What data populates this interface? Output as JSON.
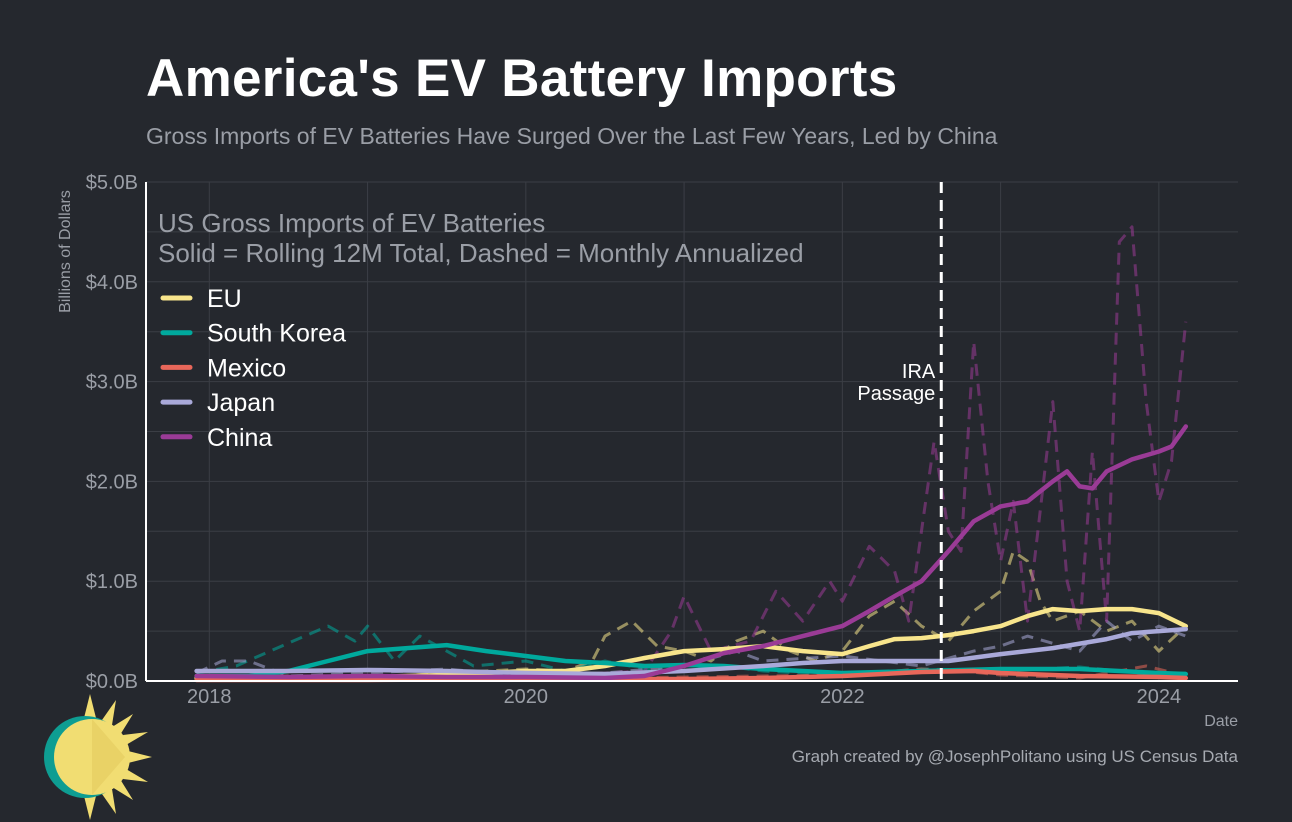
{
  "header": {
    "title": "America's EV Battery Imports",
    "subtitle": "Gross Imports of EV Batteries Have Surged Over the Last Few Years, Led by China"
  },
  "footer": {
    "credit": "Graph created by @JosephPolitano using US Census Data"
  },
  "logo": {
    "icon": "sun-logo-icon"
  },
  "colors": {
    "background": "#25282e",
    "grid": "#3b3e45",
    "axis": "#ffffff",
    "EU": "#f8e58c",
    "South Korea": "#00a99d",
    "Mexico": "#e8675a",
    "Japan": "#a9a9d9",
    "China": "#9a3b96"
  },
  "chart_data": {
    "type": "line",
    "inner_title_lines": [
      "US Gross Imports of EV Batteries",
      "Solid = Rolling 12M Total, Dashed = Monthly Annualized"
    ],
    "xlabel": "Date",
    "ylabel": "Billions of Dollars",
    "xlim": [
      2017.6,
      2024.5
    ],
    "ylim": [
      0,
      5
    ],
    "x_ticks": [
      2018,
      2020,
      2022,
      2024
    ],
    "x_tick_labels": [
      "2018",
      "2020",
      "2022",
      "2024"
    ],
    "y_ticks": [
      0,
      1,
      2,
      3,
      4,
      5
    ],
    "y_tick_labels": [
      "$0.0B",
      "$1.0B",
      "$2.0B",
      "$3.0B",
      "$4.0B",
      "$5.0B"
    ],
    "legend_position": "top-left",
    "annotation": {
      "x": 2022.625,
      "lines": [
        "IRA",
        "Passage"
      ]
    },
    "series": [
      {
        "name": "EU",
        "rolling": [
          [
            2017.92,
            0.03
          ],
          [
            2018.5,
            0.03
          ],
          [
            2019.0,
            0.04
          ],
          [
            2019.5,
            0.06
          ],
          [
            2020.0,
            0.1
          ],
          [
            2020.25,
            0.1
          ],
          [
            2020.5,
            0.15
          ],
          [
            2020.75,
            0.23
          ],
          [
            2021.0,
            0.3
          ],
          [
            2021.25,
            0.32
          ],
          [
            2021.5,
            0.35
          ],
          [
            2021.75,
            0.3
          ],
          [
            2022.0,
            0.27
          ],
          [
            2022.17,
            0.35
          ],
          [
            2022.33,
            0.42
          ],
          [
            2022.5,
            0.43
          ],
          [
            2022.67,
            0.46
          ],
          [
            2022.83,
            0.5
          ],
          [
            2023.0,
            0.55
          ],
          [
            2023.17,
            0.65
          ],
          [
            2023.33,
            0.72
          ],
          [
            2023.5,
            0.7
          ],
          [
            2023.67,
            0.72
          ],
          [
            2023.83,
            0.72
          ],
          [
            2024.0,
            0.68
          ],
          [
            2024.17,
            0.55
          ]
        ],
        "monthly": [
          [
            2017.92,
            0.02
          ],
          [
            2018.5,
            0.05
          ],
          [
            2019.0,
            0.03
          ],
          [
            2019.5,
            0.08
          ],
          [
            2020.0,
            0.12
          ],
          [
            2020.25,
            0.1
          ],
          [
            2020.42,
            0.2
          ],
          [
            2020.5,
            0.45
          ],
          [
            2020.67,
            0.6
          ],
          [
            2020.83,
            0.35
          ],
          [
            2021.0,
            0.3
          ],
          [
            2021.17,
            0.2
          ],
          [
            2021.33,
            0.4
          ],
          [
            2021.5,
            0.5
          ],
          [
            2021.67,
            0.3
          ],
          [
            2021.83,
            0.2
          ],
          [
            2022.0,
            0.3
          ],
          [
            2022.17,
            0.65
          ],
          [
            2022.33,
            0.8
          ],
          [
            2022.5,
            0.55
          ],
          [
            2022.67,
            0.4
          ],
          [
            2022.83,
            0.7
          ],
          [
            2023.0,
            0.9
          ],
          [
            2023.08,
            1.3
          ],
          [
            2023.17,
            1.2
          ],
          [
            2023.25,
            0.8
          ],
          [
            2023.33,
            0.6
          ],
          [
            2023.5,
            0.7
          ],
          [
            2023.67,
            0.5
          ],
          [
            2023.83,
            0.6
          ],
          [
            2024.0,
            0.3
          ],
          [
            2024.17,
            0.55
          ]
        ]
      },
      {
        "name": "South Korea",
        "rolling": [
          [
            2017.92,
            0.05
          ],
          [
            2018.25,
            0.05
          ],
          [
            2018.5,
            0.1
          ],
          [
            2018.75,
            0.2
          ],
          [
            2019.0,
            0.3
          ],
          [
            2019.25,
            0.33
          ],
          [
            2019.5,
            0.36
          ],
          [
            2019.75,
            0.3
          ],
          [
            2020.0,
            0.25
          ],
          [
            2020.25,
            0.2
          ],
          [
            2020.5,
            0.18
          ],
          [
            2020.75,
            0.15
          ],
          [
            2021.0,
            0.16
          ],
          [
            2021.25,
            0.15
          ],
          [
            2021.5,
            0.12
          ],
          [
            2021.75,
            0.1
          ],
          [
            2022.0,
            0.08
          ],
          [
            2022.5,
            0.1
          ],
          [
            2023.0,
            0.12
          ],
          [
            2023.5,
            0.12
          ],
          [
            2024.0,
            0.08
          ],
          [
            2024.17,
            0.07
          ]
        ],
        "monthly": [
          [
            2017.92,
            0.08
          ],
          [
            2018.17,
            0.15
          ],
          [
            2018.5,
            0.38
          ],
          [
            2018.75,
            0.55
          ],
          [
            2018.92,
            0.4
          ],
          [
            2019.0,
            0.55
          ],
          [
            2019.17,
            0.2
          ],
          [
            2019.33,
            0.45
          ],
          [
            2019.5,
            0.3
          ],
          [
            2019.67,
            0.15
          ],
          [
            2020.0,
            0.2
          ],
          [
            2020.25,
            0.1
          ],
          [
            2020.5,
            0.2
          ],
          [
            2020.75,
            0.12
          ],
          [
            2021.0,
            0.1
          ],
          [
            2021.25,
            0.15
          ],
          [
            2021.5,
            0.1
          ],
          [
            2022.0,
            0.06
          ],
          [
            2022.5,
            0.12
          ],
          [
            2023.0,
            0.1
          ],
          [
            2023.5,
            0.14
          ],
          [
            2024.0,
            0.06
          ],
          [
            2024.17,
            0.08
          ]
        ]
      },
      {
        "name": "Mexico",
        "rolling": [
          [
            2017.92,
            0.01
          ],
          [
            2019.0,
            0.01
          ],
          [
            2020.0,
            0.02
          ],
          [
            2021.0,
            0.02
          ],
          [
            2021.5,
            0.03
          ],
          [
            2022.0,
            0.05
          ],
          [
            2022.5,
            0.09
          ],
          [
            2022.83,
            0.1
          ],
          [
            2023.0,
            0.08
          ],
          [
            2023.5,
            0.05
          ],
          [
            2024.0,
            0.04
          ],
          [
            2024.17,
            0.03
          ]
        ],
        "monthly": [
          [
            2017.92,
            0.01
          ],
          [
            2020.0,
            0.02
          ],
          [
            2021.5,
            0.05
          ],
          [
            2022.0,
            0.06
          ],
          [
            2022.5,
            0.12
          ],
          [
            2022.75,
            0.1
          ],
          [
            2023.0,
            0.06
          ],
          [
            2023.5,
            0.03
          ],
          [
            2023.92,
            0.15
          ],
          [
            2024.17,
            0.05
          ]
        ]
      },
      {
        "name": "Japan",
        "rolling": [
          [
            2017.92,
            0.1
          ],
          [
            2018.5,
            0.1
          ],
          [
            2019.0,
            0.11
          ],
          [
            2019.5,
            0.1
          ],
          [
            2020.0,
            0.08
          ],
          [
            2020.5,
            0.07
          ],
          [
            2021.0,
            0.1
          ],
          [
            2021.5,
            0.15
          ],
          [
            2021.75,
            0.18
          ],
          [
            2022.0,
            0.2
          ],
          [
            2022.5,
            0.2
          ],
          [
            2022.67,
            0.2
          ],
          [
            2023.0,
            0.27
          ],
          [
            2023.33,
            0.33
          ],
          [
            2023.67,
            0.42
          ],
          [
            2023.83,
            0.48
          ],
          [
            2024.0,
            0.5
          ],
          [
            2024.17,
            0.52
          ]
        ],
        "monthly": [
          [
            2017.92,
            0.08
          ],
          [
            2018.08,
            0.2
          ],
          [
            2018.25,
            0.2
          ],
          [
            2018.5,
            0.05
          ],
          [
            2019.0,
            0.08
          ],
          [
            2019.5,
            0.12
          ],
          [
            2020.0,
            0.05
          ],
          [
            2020.5,
            0.08
          ],
          [
            2021.0,
            0.15
          ],
          [
            2021.33,
            0.3
          ],
          [
            2021.5,
            0.2
          ],
          [
            2022.0,
            0.25
          ],
          [
            2022.5,
            0.15
          ],
          [
            2022.83,
            0.3
          ],
          [
            2023.0,
            0.35
          ],
          [
            2023.17,
            0.45
          ],
          [
            2023.5,
            0.3
          ],
          [
            2023.67,
            0.6
          ],
          [
            2023.83,
            0.4
          ],
          [
            2024.0,
            0.55
          ],
          [
            2024.17,
            0.45
          ]
        ]
      },
      {
        "name": "China",
        "rolling": [
          [
            2017.92,
            0.05
          ],
          [
            2018.5,
            0.04
          ],
          [
            2019.0,
            0.05
          ],
          [
            2019.5,
            0.04
          ],
          [
            2020.0,
            0.04
          ],
          [
            2020.5,
            0.03
          ],
          [
            2020.75,
            0.05
          ],
          [
            2021.0,
            0.15
          ],
          [
            2021.25,
            0.28
          ],
          [
            2021.5,
            0.35
          ],
          [
            2021.75,
            0.45
          ],
          [
            2022.0,
            0.55
          ],
          [
            2022.17,
            0.7
          ],
          [
            2022.33,
            0.85
          ],
          [
            2022.5,
            1.0
          ],
          [
            2022.67,
            1.3
          ],
          [
            2022.83,
            1.6
          ],
          [
            2023.0,
            1.75
          ],
          [
            2023.17,
            1.8
          ],
          [
            2023.33,
            2.0
          ],
          [
            2023.42,
            2.1
          ],
          [
            2023.5,
            1.95
          ],
          [
            2023.58,
            1.93
          ],
          [
            2023.67,
            2.1
          ],
          [
            2023.83,
            2.22
          ],
          [
            2024.0,
            2.3
          ],
          [
            2024.08,
            2.35
          ],
          [
            2024.17,
            2.55
          ]
        ],
        "monthly": [
          [
            2017.92,
            0.03
          ],
          [
            2019.0,
            0.03
          ],
          [
            2020.0,
            0.04
          ],
          [
            2020.75,
            0.1
          ],
          [
            2020.92,
            0.5
          ],
          [
            2021.0,
            0.85
          ],
          [
            2021.17,
            0.3
          ],
          [
            2021.42,
            0.4
          ],
          [
            2021.58,
            0.9
          ],
          [
            2021.75,
            0.6
          ],
          [
            2021.92,
            1.0
          ],
          [
            2022.0,
            0.8
          ],
          [
            2022.17,
            1.35
          ],
          [
            2022.33,
            1.1
          ],
          [
            2022.42,
            0.6
          ],
          [
            2022.58,
            2.4
          ],
          [
            2022.67,
            1.5
          ],
          [
            2022.75,
            1.3
          ],
          [
            2022.83,
            3.4
          ],
          [
            2022.92,
            2.0
          ],
          [
            2023.0,
            1.2
          ],
          [
            2023.08,
            1.8
          ],
          [
            2023.17,
            0.6
          ],
          [
            2023.33,
            2.8
          ],
          [
            2023.42,
            1.0
          ],
          [
            2023.5,
            0.5
          ],
          [
            2023.58,
            2.3
          ],
          [
            2023.67,
            0.6
          ],
          [
            2023.75,
            4.4
          ],
          [
            2023.83,
            4.55
          ],
          [
            2023.92,
            2.8
          ],
          [
            2024.0,
            1.8
          ],
          [
            2024.08,
            2.2
          ],
          [
            2024.17,
            3.6
          ]
        ]
      }
    ]
  }
}
